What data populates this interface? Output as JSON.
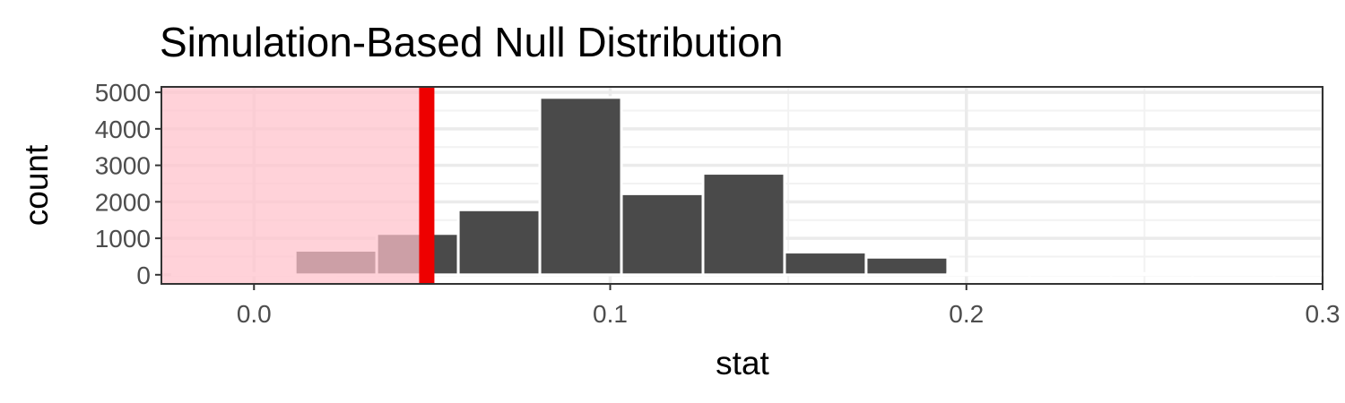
{
  "chart_data": {
    "type": "bar",
    "title": "Simulation-Based Null Distribution",
    "xlabel": "stat",
    "ylabel": "count",
    "xlim": [
      -0.026,
      0.3
    ],
    "ylim": [
      -250,
      5150
    ],
    "x_ticks": [
      0.0,
      0.1,
      0.2,
      0.3
    ],
    "x_tick_labels": [
      "0.0",
      "0.1",
      "0.2",
      "0.3"
    ],
    "y_ticks": [
      0,
      1000,
      2000,
      3000,
      4000,
      5000
    ],
    "y_tick_labels": [
      "0",
      "1000",
      "2000",
      "3000",
      "4000",
      "5000"
    ],
    "bin_width": 0.0229,
    "bins": [
      {
        "x": -0.0114,
        "value": 0
      },
      {
        "x": 0.0115,
        "value": 0
      },
      {
        "x": 0.023,
        "value": 670
      },
      {
        "x": 0.0459,
        "value": 1130
      },
      {
        "x": 0.0688,
        "value": 1780
      },
      {
        "x": 0.0917,
        "value": 4860
      },
      {
        "x": 0.1146,
        "value": 2220
      },
      {
        "x": 0.1375,
        "value": 2780
      },
      {
        "x": 0.1604,
        "value": 620
      },
      {
        "x": 0.1833,
        "value": 480
      },
      {
        "x": 0.2062,
        "value": 0
      },
      {
        "x": 0.2291,
        "value": 0
      },
      {
        "x": 0.252,
        "value": 0
      },
      {
        "x": 0.2749,
        "value": 0
      },
      {
        "x": 0.2978,
        "value": 0
      }
    ],
    "observed_stat": 0.0485,
    "shade_direction": "less",
    "grid": true,
    "colors": {
      "bar_fill": "#4a4a4a",
      "bar_outline": "#ffffff",
      "shade_fill": "#ffc0cb",
      "observed_line": "#ee0000",
      "grid_major": "#ebebeb",
      "grid_minor": "#f2f2f2",
      "panel_border": "#333333",
      "tick_text": "#4d4d4d"
    }
  }
}
